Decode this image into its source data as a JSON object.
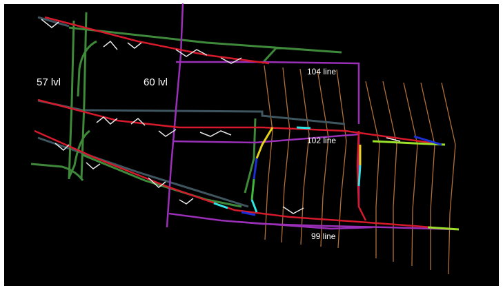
{
  "map": {
    "background_color": "#000000",
    "labels": {
      "level_57": "57 lvl",
      "level_60": "60 lvl",
      "line_104": "104 line",
      "line_102": "102 line",
      "line_99": "99 line"
    },
    "colors": {
      "main_drive_red": "#d61a2c",
      "drive_purple": "#9a2fb8",
      "shaft_57_green": "#3f8a3a",
      "shaft_60_purple": "#a02fc0",
      "ramp_gray": "#3f5660",
      "crosscut_brown": "#b0703a",
      "survey_white": "#e8e8e8",
      "ramp_yellow": "#e6d21c",
      "ramp_blue": "#1c2fd6",
      "ramp_cyan": "#2ee6e6",
      "lime": "#9adf2a",
      "label_white": "#ffffff"
    }
  }
}
